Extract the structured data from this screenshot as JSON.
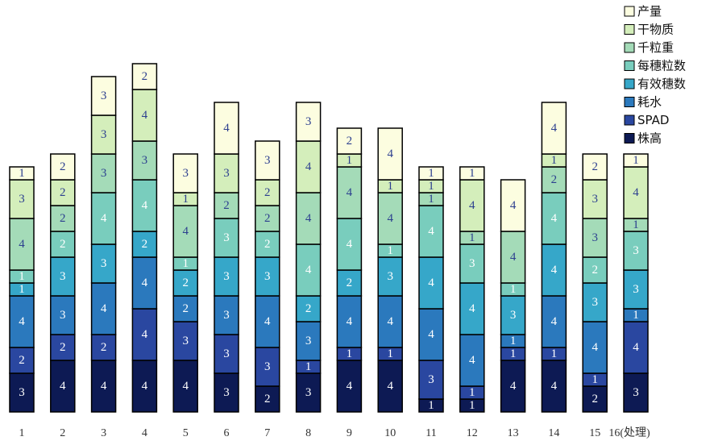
{
  "chart_data": {
    "type": "bar",
    "stacked": true,
    "categories": [
      "1",
      "2",
      "3",
      "4",
      "5",
      "6",
      "7",
      "8",
      "9",
      "10",
      "11",
      "12",
      "13",
      "14",
      "15",
      "16"
    ],
    "x_suffix_last": "(处理)",
    "series": [
      {
        "name": "株高",
        "color": "#0d1a54",
        "text_color": "#ffffff",
        "values": [
          3,
          4,
          4,
          4,
          4,
          3,
          2,
          3,
          4,
          4,
          1,
          1,
          4,
          4,
          2,
          3
        ]
      },
      {
        "name": "SPAD",
        "color": "#2a47a0",
        "text_color": "#ffffff",
        "values": [
          2,
          2,
          2,
          4,
          3,
          3,
          3,
          1,
          1,
          1,
          3,
          1,
          1,
          1,
          1,
          4
        ]
      },
      {
        "name": "耗水",
        "color": "#2b79bd",
        "text_color": "#ffffff",
        "values": [
          4,
          3,
          4,
          4,
          2,
          3,
          4,
          3,
          4,
          4,
          4,
          4,
          1,
          4,
          4,
          1
        ]
      },
      {
        "name": "有效穗数",
        "color": "#36a7c9",
        "text_color": "#ffffff",
        "values": [
          1,
          3,
          3,
          2,
          2,
          3,
          3,
          2,
          2,
          3,
          4,
          4,
          3,
          4,
          3,
          3
        ]
      },
      {
        "name": "每穗粒数",
        "color": "#79cdbd",
        "text_color": "#ffffff",
        "values": [
          1,
          2,
          4,
          4,
          1,
          3,
          2,
          4,
          4,
          1,
          4,
          3,
          1,
          4,
          2,
          3
        ]
      },
      {
        "name": "千粒重",
        "color": "#a4dbb8",
        "text_color": "#2c3f8f",
        "values": [
          4,
          2,
          3,
          3,
          4,
          2,
          2,
          4,
          4,
          4,
          1,
          1,
          4,
          2,
          3,
          1
        ]
      },
      {
        "name": "干物质",
        "color": "#d4eebb",
        "text_color": "#2c3f8f",
        "values": [
          3,
          2,
          3,
          4,
          1,
          3,
          2,
          4,
          1,
          1,
          1,
          4,
          0,
          1,
          3,
          4
        ]
      },
      {
        "name": "产量",
        "color": "#fcfde0",
        "text_color": "#2c3f8f",
        "values": [
          1,
          2,
          3,
          2,
          3,
          4,
          3,
          3,
          2,
          4,
          1,
          1,
          4,
          4,
          2,
          1
        ]
      }
    ],
    "ylim": [
      0,
      27
    ],
    "grid": false,
    "legend_position": "top-right"
  }
}
